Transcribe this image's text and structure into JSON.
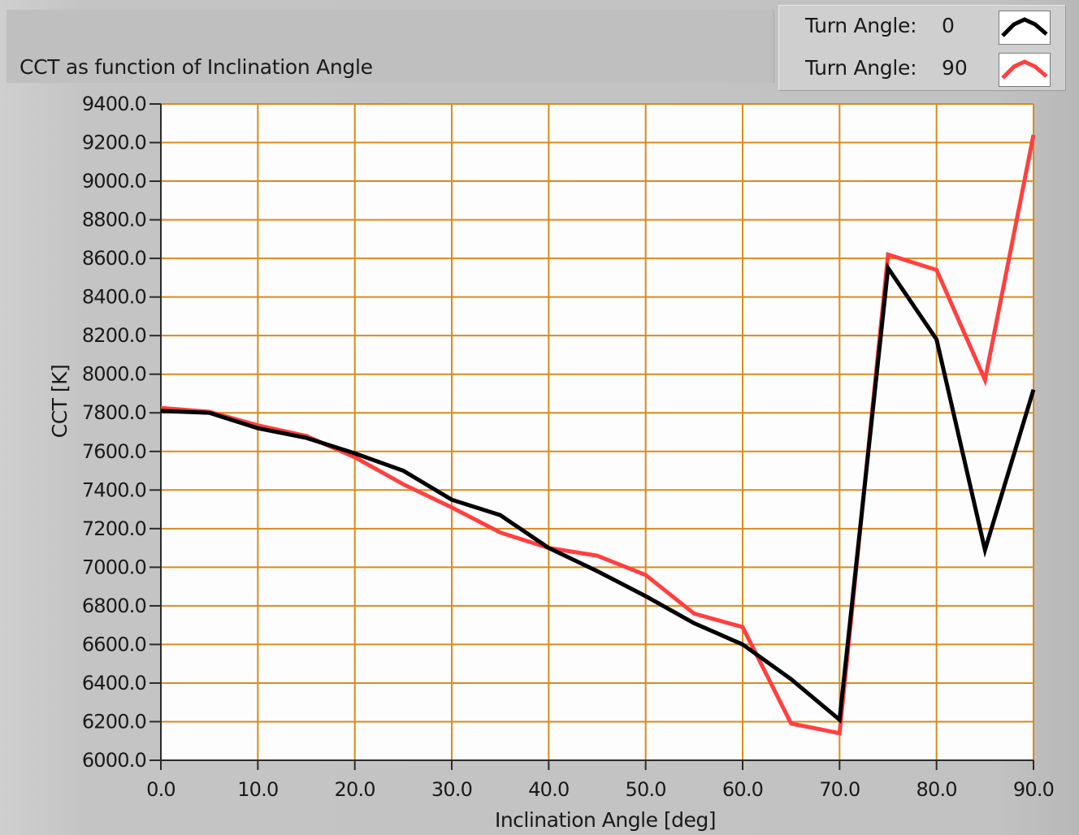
{
  "title": "CCT as function of Inclination Angle",
  "legend": [
    {
      "label": "Turn Angle:",
      "value": "0",
      "color": "#000000",
      "icon": "line-swatch-black"
    },
    {
      "label": "Turn Angle:",
      "value": "90",
      "color": "#ff4040",
      "icon": "line-swatch-red"
    }
  ],
  "colors": {
    "grid": "#d98b19",
    "plot_bg": "#fdfdfd",
    "series_0": "#000000",
    "series_90": "#ff4040"
  },
  "chart_data": {
    "type": "line",
    "title": "CCT as function of Inclination Angle",
    "xlabel": "Inclination Angle [deg]",
    "ylabel": "CCT [K]",
    "xlim": [
      0,
      90
    ],
    "ylim": [
      6000,
      9400
    ],
    "x_ticks": [
      "0.0",
      "10.0",
      "20.0",
      "30.0",
      "40.0",
      "50.0",
      "60.0",
      "70.0",
      "80.0",
      "90.0"
    ],
    "y_ticks": [
      "6000.0",
      "6200.0",
      "6400.0",
      "6600.0",
      "6800.0",
      "7000.0",
      "7200.0",
      "7400.0",
      "7600.0",
      "7800.0",
      "8000.0",
      "8200.0",
      "8400.0",
      "8600.0",
      "8800.0",
      "9000.0",
      "9200.0",
      "9400.0"
    ],
    "grid": true,
    "legend_position": "top-right",
    "x": [
      0,
      5,
      10,
      15,
      20,
      25,
      30,
      35,
      40,
      45,
      50,
      55,
      60,
      65,
      70,
      75,
      80,
      85,
      90
    ],
    "series": [
      {
        "name": "Turn Angle: 0",
        "color": "#000000",
        "values": [
          7810,
          7800,
          7720,
          7670,
          7590,
          7500,
          7350,
          7270,
          7100,
          6980,
          6850,
          6710,
          6600,
          6420,
          6210,
          8550,
          8180,
          7090,
          7920
        ]
      },
      {
        "name": "Turn Angle: 90",
        "color": "#ff4040",
        "values": [
          7825,
          7805,
          7735,
          7680,
          7570,
          7430,
          7310,
          7180,
          7100,
          7060,
          6960,
          6760,
          6690,
          6190,
          6140,
          8620,
          8540,
          7970,
          9240
        ]
      }
    ]
  }
}
